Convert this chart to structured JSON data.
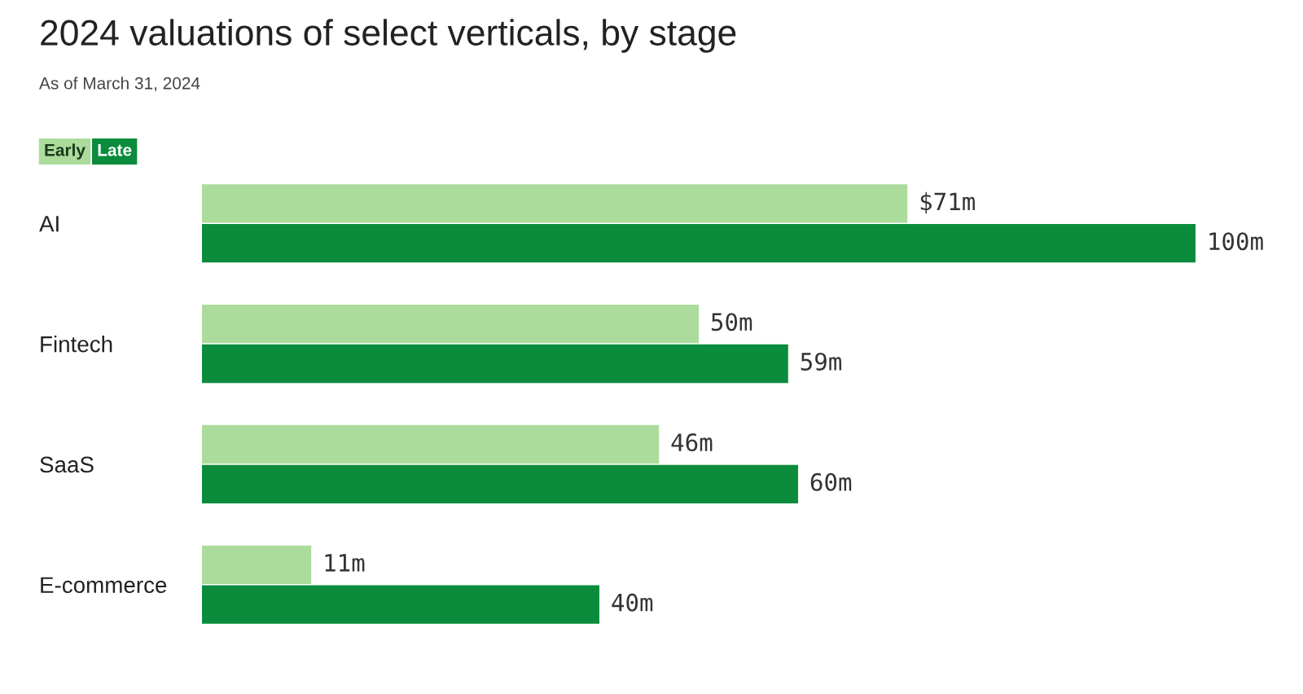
{
  "chart_data": {
    "type": "bar",
    "orientation": "horizontal",
    "title": "2024 valuations of select verticals, by stage",
    "subtitle": "As of March 31, 2024",
    "categories": [
      "AI",
      "Fintech",
      "SaaS",
      "E-commerce"
    ],
    "series": [
      {
        "name": "Early",
        "color": "#acdc9c",
        "values": [
          71,
          50,
          46,
          11
        ],
        "value_labels": [
          "$71m",
          "50m",
          "46m",
          "11m"
        ]
      },
      {
        "name": "Late",
        "color": "#0b8c3c",
        "values": [
          100,
          59,
          60,
          40
        ],
        "value_labels": [
          "100m",
          "59m",
          "60m",
          "40m"
        ]
      }
    ],
    "legend": "top left",
    "grid": false
  }
}
